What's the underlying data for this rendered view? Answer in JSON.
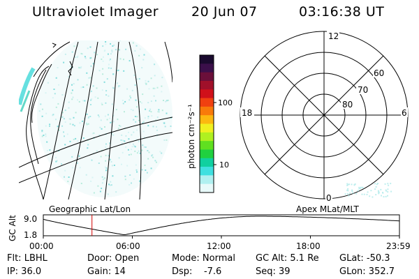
{
  "header": {
    "title": "Ultraviolet Imager",
    "date": "20 Jun 07",
    "time": "03:16:38 UT"
  },
  "colorbar": {
    "label": "photon cm⁻²s⁻¹",
    "ticks": [
      "100",
      "10"
    ],
    "colors": [
      "#1a0a2e",
      "#3b0f4a",
      "#6a0f3a",
      "#a0102a",
      "#d0101a",
      "#f04010",
      "#f87a0a",
      "#fcb810",
      "#f0f020",
      "#b0f020",
      "#60e020",
      "#20d040",
      "#10d0a0",
      "#40e0e0",
      "#b0f0f0",
      "#e8fafa"
    ]
  },
  "polar": {
    "mlt_labels": [
      "12",
      "18",
      "6",
      "0"
    ],
    "lat_labels": [
      "60",
      "70",
      "80"
    ]
  },
  "timeline": {
    "geo_label": "Geographic Lat/Lon",
    "apex_label": "Apex  MLat/MLT",
    "ylabel": "GC Alt",
    "y_ticks": [
      "9.0",
      "1.8"
    ],
    "x_ticks": [
      "00:00",
      "06:00",
      "12:00",
      "18:00",
      "23:59"
    ],
    "marker_time_hours": 3.28,
    "marker_color": "#d00000"
  },
  "info": {
    "row1": [
      "Flt: LBHL",
      "Door: Open",
      "Mode: Normal",
      "GC Alt: 5.1 Re",
      "GLat: -50.3"
    ],
    "row2": [
      "IP: 36.0",
      "Gain: 14",
      "Dsp:    -7.6",
      "Seq: 39",
      "GLon: 352.7"
    ]
  }
}
